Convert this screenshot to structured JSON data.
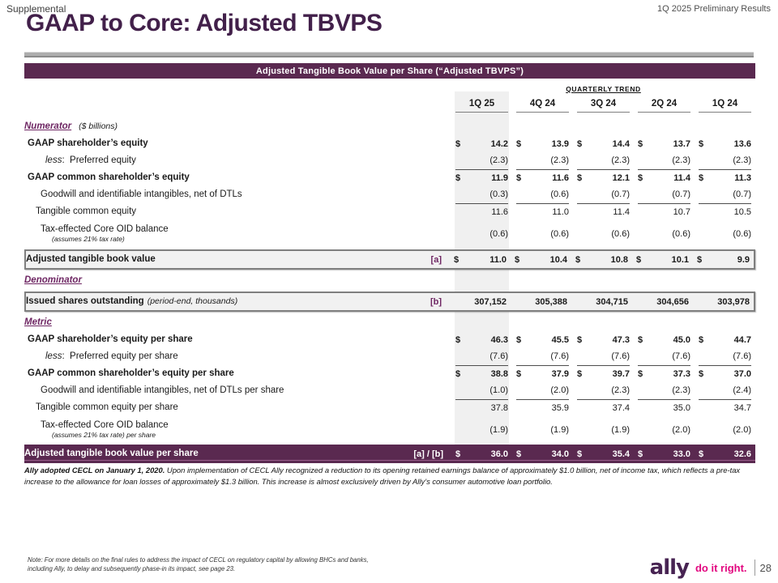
{
  "header": {
    "eyebrow": "Supplemental",
    "title": "GAAP to Core: Adjusted TBVPS",
    "top_right": "1Q 2025 Preliminary Results"
  },
  "table": {
    "banner": "Adjusted Tangible Book Value per Share (“Adjusted TBVPS”)",
    "trend_label": "QUARTERLY TREND",
    "columns": [
      "1Q 25",
      "4Q 24",
      "3Q 24",
      "2Q 24",
      "1Q 24"
    ],
    "rows": [
      {
        "kind": "section",
        "label": "Numerator",
        "suffix": "($ billions)"
      },
      {
        "kind": "data",
        "label": "GAAP shareholder’s equity",
        "bold": true,
        "indent": 0,
        "dollar": true,
        "values": [
          "14.2",
          "13.9",
          "14.4",
          "13.7",
          "13.6"
        ]
      },
      {
        "kind": "data",
        "prefix": "less",
        "label": "Preferred equity",
        "indent": 3,
        "underline": true,
        "values": [
          "(2.3)",
          "(2.3)",
          "(2.3)",
          "(2.3)",
          "(2.3)"
        ]
      },
      {
        "kind": "data",
        "label": "GAAP common shareholder’s equity",
        "bold": true,
        "indent": 0,
        "dollar": true,
        "values": [
          "11.9",
          "11.6",
          "12.1",
          "11.4",
          "11.3"
        ]
      },
      {
        "kind": "data",
        "label": "Goodwill and identifiable intangibles, net of DTLs",
        "indent": 2,
        "underline": true,
        "values": [
          "(0.3)",
          "(0.6)",
          "(0.7)",
          "(0.7)",
          "(0.7)"
        ]
      },
      {
        "kind": "data",
        "label": "Tangible common equity",
        "indent": 1,
        "values": [
          "11.6",
          "11.0",
          "11.4",
          "10.7",
          "10.5"
        ]
      },
      {
        "kind": "data",
        "label": "Tax-effected Core OID balance",
        "sublabel": "(assumes 21% tax rate)",
        "indent": 2,
        "values": [
          "(0.6)",
          "(0.6)",
          "(0.6)",
          "(0.6)",
          "(0.6)"
        ]
      },
      {
        "kind": "boxed",
        "label": "Adjusted tangible book value",
        "bracket": "[a]",
        "dollar": true,
        "values": [
          "11.0",
          "10.4",
          "10.8",
          "10.1",
          "9.9"
        ]
      },
      {
        "kind": "section",
        "label": "Denominator"
      },
      {
        "kind": "boxed",
        "label": "Issued shares outstanding",
        "label_suffix": "(period-end, thousands)",
        "bracket": "[b]",
        "values": [
          "307,152",
          "305,388",
          "304,715",
          "304,656",
          "303,978"
        ]
      },
      {
        "kind": "section",
        "label": "Metric"
      },
      {
        "kind": "data",
        "label": "GAAP shareholder’s equity per share",
        "bold": true,
        "indent": 0,
        "dollar": true,
        "values": [
          "46.3",
          "45.5",
          "47.3",
          "45.0",
          "44.7"
        ]
      },
      {
        "kind": "data",
        "prefix": "less",
        "label": "Preferred equity per share",
        "indent": 3,
        "underline": true,
        "values": [
          "(7.6)",
          "(7.6)",
          "(7.6)",
          "(7.6)",
          "(7.6)"
        ]
      },
      {
        "kind": "data",
        "label": "GAAP common shareholder’s equity per share",
        "bold": true,
        "indent": 0,
        "dollar": true,
        "values": [
          "38.8",
          "37.9",
          "39.7",
          "37.3",
          "37.0"
        ]
      },
      {
        "kind": "data",
        "label": "Goodwill and identifiable intangibles, net of DTLs per share",
        "indent": 2,
        "underline": true,
        "values": [
          "(1.0)",
          "(2.0)",
          "(2.3)",
          "(2.3)",
          "(2.4)"
        ]
      },
      {
        "kind": "data",
        "label": "Tangible common equity per share",
        "indent": 1,
        "values": [
          "37.8",
          "35.9",
          "37.4",
          "35.0",
          "34.7"
        ]
      },
      {
        "kind": "data",
        "label": "Tax-effected Core OID balance",
        "sublabel": "(assumes 21% tax rate) per share",
        "indent": 2,
        "values": [
          "(1.9)",
          "(1.9)",
          "(1.9)",
          "(2.0)",
          "(2.0)"
        ]
      },
      {
        "kind": "purple",
        "label": "Adjusted tangible book value per share",
        "bracket": "[a] / [b]",
        "dollar": true,
        "values": [
          "36.0",
          "34.0",
          "35.4",
          "33.0",
          "32.6"
        ]
      }
    ]
  },
  "footnotes": {
    "cecl_lead": "Ally adopted CECL on January 1, 2020.",
    "cecl_body": " Upon implementation of CECL Ally recognized a reduction to its opening retained earnings balance of approximately $1.0 billion, net of income tax, which reflects a pre-tax increase to the allowance for loan losses of approximately $1.3 billion. This increase is almost exclusively driven by Ally’s consumer automotive loan portfolio.",
    "note": "Note: For more details on the final rules to address the impact of CECL on regulatory capital by allowing BHCs and banks, including Ally, to delay and subsequently phase-in its impact, see page 23."
  },
  "footer": {
    "logo_text": "ally",
    "tagline": "do it right.",
    "page": "28"
  },
  "colors": {
    "plum_bar": "#5a2950",
    "title_plum": "#42204a",
    "accent_purple": "#6e2663",
    "brand_pink": "#e2067f",
    "column_shade": "#f0f0f0",
    "box_background": "#f1f1f1",
    "box_border": "#7f7f7f"
  }
}
